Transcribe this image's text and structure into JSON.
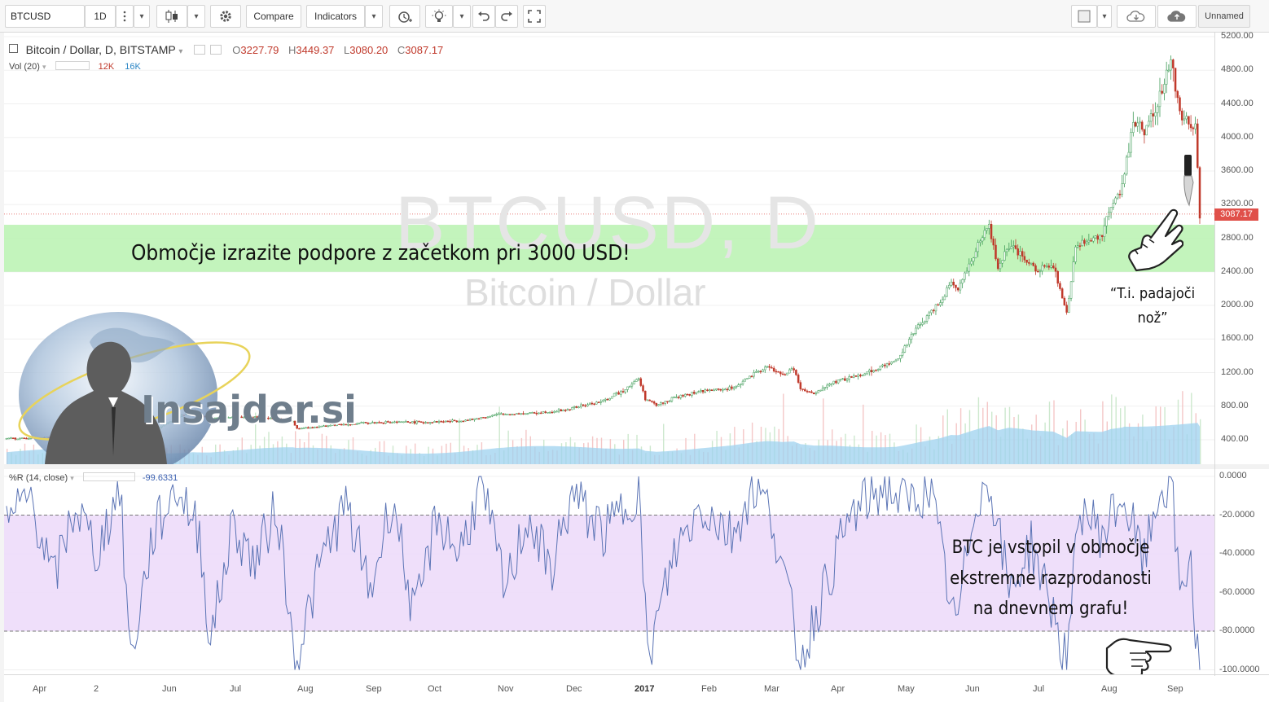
{
  "toolbar": {
    "symbol": "BTCUSD",
    "interval": "1D",
    "compare_label": "Compare",
    "indicators_label": "Indicators",
    "layout_name": "Unnamed"
  },
  "legend": {
    "title": "Bitcoin / Dollar, D, BITSTAMP",
    "open_label": "O",
    "open": "3227.79",
    "high_label": "H",
    "high": "3449.37",
    "low_label": "L",
    "low": "3080.20",
    "close_label": "C",
    "close": "3087.17",
    "volume_title": "Vol (20)",
    "volume_1": "12K",
    "volume_2": "16K",
    "osc_title": "%R (14, close)",
    "osc_value": "-99.6331"
  },
  "watermark": {
    "symbol": "BTCUSD, D",
    "name": "Bitcoin / Dollar"
  },
  "logo_text": "Insajder.si",
  "annotations": {
    "support_zone": "Območje izrazite podpore z začetkom pri 3000 USD!",
    "falling_knife_line1": "“T.i. padajoči",
    "falling_knife_line2": "nož”",
    "oversold_line1": "BTC je vstopil v območje",
    "oversold_line2": "ekstremne razprodanosti",
    "oversold_line3": "na dnevnem grafu!"
  },
  "price_axis": {
    "labels": [
      "5200.00",
      "4800.00",
      "4400.00",
      "4000.00",
      "3600.00",
      "3200.00",
      "2800.00",
      "2400.00",
      "2000.00",
      "1600.00",
      "1200.00",
      "800.00",
      "400.00"
    ],
    "last_price": "3087.17",
    "last_price_color": "#e0504a"
  },
  "osc_axis": {
    "labels": [
      "0.0000",
      "-20.0000",
      "-40.0000",
      "-60.0000",
      "-80.0000",
      "-100.0000"
    ]
  },
  "time_axis": {
    "labels": [
      "Apr",
      "2",
      "Jun",
      "Jul",
      "Aug",
      "Sep",
      "Oct",
      "Nov",
      "Dec",
      "2017",
      "Feb",
      "Mar",
      "Apr",
      "May",
      "Jun",
      "Jul",
      "Aug",
      "Sep"
    ]
  },
  "colors": {
    "up": "#3d9b56",
    "down": "#c0392b",
    "support_zone": "#b9f2b0",
    "osc_band": "#eddcfa",
    "osc_line": "#5b74b5",
    "volume_area": "#9dd1ef",
    "last_price_line": "#e0504a"
  },
  "chart_data": {
    "type": "line",
    "price_ylim": [
      0,
      5300
    ],
    "price_series": {
      "name": "Bitcoin / Dollar",
      "points": [
        [
          "2016-03-25",
          415
        ],
        [
          "2016-04-15",
          425
        ],
        [
          "2016-05-05",
          450
        ],
        [
          "2016-05-25",
          470
        ],
        [
          "2016-06-01",
          540
        ],
        [
          "2016-06-12",
          690
        ],
        [
          "2016-06-17",
          750
        ],
        [
          "2016-06-25",
          650
        ],
        [
          "2016-07-05",
          675
        ],
        [
          "2016-07-20",
          665
        ],
        [
          "2016-08-01",
          610
        ],
        [
          "2016-08-03",
          530
        ],
        [
          "2016-08-20",
          578
        ],
        [
          "2016-09-10",
          610
        ],
        [
          "2016-10-01",
          610
        ],
        [
          "2016-10-20",
          635
        ],
        [
          "2016-11-01",
          700
        ],
        [
          "2016-11-15",
          715
        ],
        [
          "2016-12-01",
          750
        ],
        [
          "2016-12-20",
          870
        ],
        [
          "2016-12-28",
          990
        ],
        [
          "2017-01-04",
          1130
        ],
        [
          "2017-01-07",
          890
        ],
        [
          "2017-01-12",
          810
        ],
        [
          "2017-01-20",
          900
        ],
        [
          "2017-02-01",
          980
        ],
        [
          "2017-02-15",
          1010
        ],
        [
          "2017-02-25",
          1180
        ],
        [
          "2017-03-03",
          1270
        ],
        [
          "2017-03-10",
          1170
        ],
        [
          "2017-03-15",
          1250
        ],
        [
          "2017-03-18",
          1000
        ],
        [
          "2017-03-24",
          940
        ],
        [
          "2017-04-01",
          1080
        ],
        [
          "2017-04-15",
          1180
        ],
        [
          "2017-04-30",
          1340
        ],
        [
          "2017-05-10",
          1750
        ],
        [
          "2017-05-20",
          2050
        ],
        [
          "2017-05-25",
          2300
        ],
        [
          "2017-05-28",
          2200
        ],
        [
          "2017-06-06",
          2700
        ],
        [
          "2017-06-11",
          2950
        ],
        [
          "2017-06-15",
          2450
        ],
        [
          "2017-06-20",
          2700
        ],
        [
          "2017-07-01",
          2450
        ],
        [
          "2017-07-10",
          2450
        ],
        [
          "2017-07-16",
          1900
        ],
        [
          "2017-07-20",
          2700
        ],
        [
          "2017-08-01",
          2850
        ],
        [
          "2017-08-05",
          3200
        ],
        [
          "2017-08-10",
          3400
        ],
        [
          "2017-08-15",
          4200
        ],
        [
          "2017-08-20",
          4100
        ],
        [
          "2017-08-26",
          4400
        ],
        [
          "2017-09-01",
          4900
        ],
        [
          "2017-09-05",
          4300
        ],
        [
          "2017-09-09",
          4200
        ],
        [
          "2017-09-12",
          4150
        ],
        [
          "2017-09-14",
          3087
        ]
      ]
    },
    "volume_series": {
      "name": "Vol (20)",
      "values_shown": [
        "12K",
        "16K"
      ]
    },
    "oscillator": {
      "name": "%R (14, close)",
      "ylim": [
        -100,
        0
      ],
      "levels": [
        -20,
        -80
      ],
      "last": -99.6331,
      "points": [
        [
          "2016-03-25",
          -25
        ],
        [
          "2016-04-05",
          -10
        ],
        [
          "2016-04-15",
          -55
        ],
        [
          "2016-04-25",
          -15
        ],
        [
          "2016-05-05",
          -40
        ],
        [
          "2016-05-15",
          -5
        ],
        [
          "2016-05-20",
          -95
        ],
        [
          "2016-05-30",
          -30
        ],
        [
          "2016-06-10",
          -5
        ],
        [
          "2016-06-20",
          -30
        ],
        [
          "2016-06-25",
          -85
        ],
        [
          "2016-07-05",
          -25
        ],
        [
          "2016-07-15",
          -45
        ],
        [
          "2016-07-25",
          -15
        ],
        [
          "2016-08-02",
          -97
        ],
        [
          "2016-08-15",
          -40
        ],
        [
          "2016-08-25",
          -15
        ],
        [
          "2016-09-05",
          -60
        ],
        [
          "2016-09-15",
          -10
        ],
        [
          "2016-09-25",
          -75
        ],
        [
          "2016-10-05",
          -20
        ],
        [
          "2016-10-15",
          -40
        ],
        [
          "2016-10-25",
          -5
        ],
        [
          "2016-11-05",
          -60
        ],
        [
          "2016-11-15",
          -20
        ],
        [
          "2016-11-25",
          -50
        ],
        [
          "2016-12-05",
          -10
        ],
        [
          "2016-12-20",
          -30
        ],
        [
          "2017-01-04",
          -5
        ],
        [
          "2017-01-08",
          -95
        ],
        [
          "2017-01-20",
          -40
        ],
        [
          "2017-02-01",
          -15
        ],
        [
          "2017-02-15",
          -30
        ],
        [
          "2017-02-25",
          -5
        ],
        [
          "2017-03-05",
          -20
        ],
        [
          "2017-03-18",
          -95
        ],
        [
          "2017-03-28",
          -60
        ],
        [
          "2017-04-10",
          -20
        ],
        [
          "2017-04-25",
          -5
        ],
        [
          "2017-05-05",
          -15
        ],
        [
          "2017-05-15",
          -5
        ],
        [
          "2017-05-27",
          -80
        ],
        [
          "2017-06-05",
          -10
        ],
        [
          "2017-06-12",
          -5
        ],
        [
          "2017-06-20",
          -60
        ],
        [
          "2017-06-30",
          -35
        ],
        [
          "2017-07-10",
          -70
        ],
        [
          "2017-07-16",
          -98
        ],
        [
          "2017-07-22",
          -15
        ],
        [
          "2017-08-01",
          -30
        ],
        [
          "2017-08-10",
          -10
        ],
        [
          "2017-08-20",
          -45
        ],
        [
          "2017-08-26",
          -10
        ],
        [
          "2017-09-01",
          -2
        ],
        [
          "2017-09-05",
          -60
        ],
        [
          "2017-09-10",
          -40
        ],
        [
          "2017-09-12",
          -85
        ],
        [
          "2017-09-14",
          -99.6331
        ]
      ]
    }
  }
}
